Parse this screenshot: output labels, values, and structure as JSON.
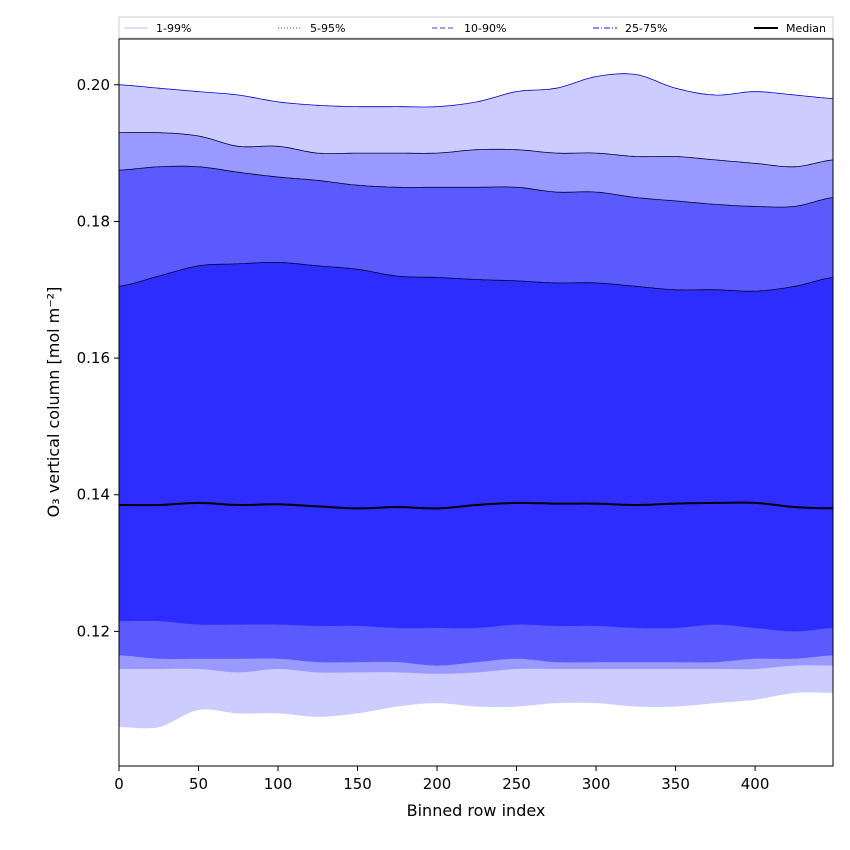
{
  "chart_data": {
    "type": "area",
    "title": "",
    "xlabel": "Binned row index",
    "ylabel": "O₃ vertical column [mol m⁻²]",
    "xlim": [
      0,
      449
    ],
    "ylim": [
      0.1003,
      0.2067
    ],
    "xticks": [
      0,
      50,
      100,
      150,
      200,
      250,
      300,
      350,
      400
    ],
    "yticks": [
      0.12,
      0.14,
      0.16,
      0.18,
      0.2
    ],
    "ytick_labels": [
      "0.12",
      "0.14",
      "0.16",
      "0.18",
      "0.20"
    ],
    "grid": false,
    "legend": {
      "placement": "top",
      "ncol": 5
    },
    "x": [
      0,
      25,
      50,
      75,
      100,
      125,
      150,
      175,
      200,
      225,
      250,
      275,
      300,
      325,
      350,
      375,
      400,
      425,
      449
    ],
    "series": [
      {
        "name": "1-99%",
        "color": "#ccccff",
        "line_color": "#ccccff",
        "line_style": "solid",
        "lower": [
          0.106,
          0.106,
          0.1085,
          0.108,
          0.108,
          0.1075,
          0.108,
          0.109,
          0.1095,
          0.109,
          0.109,
          0.1095,
          0.1095,
          0.109,
          0.109,
          0.1095,
          0.11,
          0.111,
          0.111
        ],
        "upper": [
          0.2,
          0.1995,
          0.199,
          0.1985,
          0.1975,
          0.197,
          0.1968,
          0.1968,
          0.1968,
          0.1975,
          0.199,
          0.1995,
          0.2012,
          0.2015,
          0.1995,
          0.1985,
          0.199,
          0.1985,
          0.198
        ]
      },
      {
        "name": "5-95%",
        "color": "#9999ff",
        "line_color": "#6666ff",
        "line_style": "dotted",
        "lower": [
          0.1145,
          0.1145,
          0.1145,
          0.114,
          0.1145,
          0.114,
          0.114,
          0.114,
          0.1138,
          0.114,
          0.1145,
          0.1145,
          0.1145,
          0.1145,
          0.1145,
          0.1145,
          0.1145,
          0.115,
          0.115
        ],
        "upper": [
          0.193,
          0.193,
          0.1925,
          0.191,
          0.191,
          0.19,
          0.19,
          0.19,
          0.19,
          0.1905,
          0.1905,
          0.19,
          0.19,
          0.1895,
          0.1895,
          0.189,
          0.1885,
          0.188,
          0.189
        ]
      },
      {
        "name": "10-90%",
        "color": "#5a5aff",
        "line_color": "#6666ff",
        "line_style": "dashed",
        "lower": [
          0.1165,
          0.116,
          0.116,
          0.116,
          0.116,
          0.1155,
          0.1155,
          0.1155,
          0.115,
          0.1155,
          0.116,
          0.1155,
          0.1155,
          0.1155,
          0.1155,
          0.1155,
          0.116,
          0.116,
          0.1165
        ],
        "upper": [
          0.1875,
          0.188,
          0.188,
          0.1872,
          0.1865,
          0.186,
          0.1853,
          0.185,
          0.185,
          0.185,
          0.185,
          0.1843,
          0.1843,
          0.1835,
          0.183,
          0.1825,
          0.1822,
          0.1822,
          0.1835
        ]
      },
      {
        "name": "25-75%",
        "color": "#2d2dff",
        "line_color": "#4444ff",
        "line_style": "dashdot",
        "lower": [
          0.1215,
          0.1215,
          0.121,
          0.121,
          0.121,
          0.1208,
          0.1208,
          0.1205,
          0.1205,
          0.1205,
          0.121,
          0.1208,
          0.1208,
          0.1205,
          0.1205,
          0.121,
          0.1205,
          0.12,
          0.1205
        ],
        "upper": [
          0.1705,
          0.172,
          0.1735,
          0.1738,
          0.174,
          0.1735,
          0.173,
          0.172,
          0.1718,
          0.1715,
          0.1713,
          0.171,
          0.171,
          0.1705,
          0.17,
          0.17,
          0.1698,
          0.1705,
          0.1718
        ]
      }
    ],
    "median": {
      "name": "Median",
      "color": "#000000",
      "values": [
        0.1385,
        0.1385,
        0.1388,
        0.1385,
        0.1386,
        0.1383,
        0.138,
        0.1382,
        0.138,
        0.1385,
        0.1388,
        0.1387,
        0.1387,
        0.1385,
        0.1387,
        0.1388,
        0.1388,
        0.1382,
        0.138
      ]
    }
  }
}
